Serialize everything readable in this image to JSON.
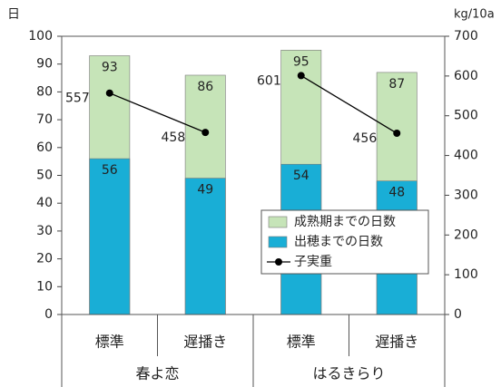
{
  "chart_data": {
    "type": "bar",
    "y_label": "日",
    "y2_label": "kg/10a",
    "categories": [
      "標準",
      "遅播き",
      "標準",
      "遅播き"
    ],
    "group_labels": [
      "春よ恋",
      "はるきらり"
    ],
    "series": [
      {
        "name": "成熟期までの日数",
        "color": "#c6e4b8",
        "values": [
          93,
          86,
          95,
          87
        ]
      },
      {
        "name": "出穂までの日数",
        "color": "#19aed6",
        "values": [
          56,
          49,
          54,
          48
        ]
      },
      {
        "name": "子実重",
        "type": "line",
        "axis": "y2",
        "color": "#000000",
        "values": [
          557,
          458,
          601,
          456
        ]
      }
    ],
    "overlap": true,
    "ylim": [
      0,
      100
    ],
    "yticks": [
      0,
      10,
      20,
      30,
      40,
      50,
      60,
      70,
      80,
      90,
      100
    ],
    "y2lim": [
      0,
      700
    ],
    "y2ticks": [
      0,
      100,
      200,
      300,
      400,
      500,
      600,
      700
    ],
    "grid": false,
    "legend": "lower right"
  }
}
